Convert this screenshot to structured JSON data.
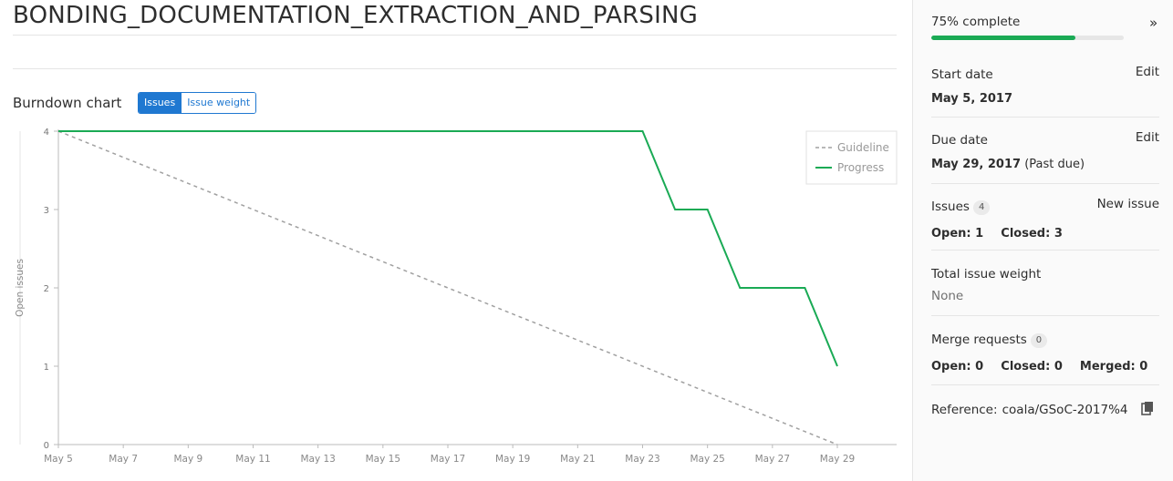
{
  "milestone": {
    "title": "BONDING_DOCUMENTATION_EXTRACTION_AND_PARSING"
  },
  "burndown": {
    "title": "Burndown chart",
    "toggle": {
      "issues_label": "Issues",
      "weight_label": "Issue weight",
      "active": "Issues"
    }
  },
  "chart_data": {
    "type": "line",
    "ylabel": "Open issues",
    "xlabel": "",
    "ylim": [
      0,
      4
    ],
    "xlim": [
      "May 5",
      "May 29"
    ],
    "y_ticks": [
      "0",
      "1",
      "2",
      "3",
      "4"
    ],
    "x_ticks": [
      "May 5",
      "May 7",
      "May 9",
      "May 11",
      "May 13",
      "May 15",
      "May 17",
      "May 19",
      "May 21",
      "May 23",
      "May 25",
      "May 27",
      "May 29"
    ],
    "legend_position": "top-right",
    "grid": false,
    "series": [
      {
        "name": "Guideline",
        "style": "dashed",
        "color": "#a0a0a0",
        "points": [
          {
            "x": "May 5",
            "y": 4
          },
          {
            "x": "May 29",
            "y": 0
          }
        ]
      },
      {
        "name": "Progress",
        "style": "solid",
        "color": "#1aaa55",
        "points": [
          {
            "x": "May 5",
            "y": 4
          },
          {
            "x": "May 23",
            "y": 4
          },
          {
            "x": "May 24",
            "y": 3
          },
          {
            "x": "May 25",
            "y": 3
          },
          {
            "x": "May 26",
            "y": 2
          },
          {
            "x": "May 28",
            "y": 2
          },
          {
            "x": "May 29",
            "y": 1
          }
        ]
      }
    ]
  },
  "sidebar": {
    "progress": {
      "label": "75% complete",
      "fraction": 0.75,
      "color": "#1aaa55"
    },
    "collapse_glyph": "»",
    "start_date": {
      "label": "Start date",
      "edit_label": "Edit",
      "value": "May 5, 2017"
    },
    "due_date": {
      "label": "Due date",
      "edit_label": "Edit",
      "value": "May 29, 2017",
      "note": "(Past due)"
    },
    "issues": {
      "label": "Issues",
      "count": "4",
      "new_label": "New issue",
      "open_label": "Open:",
      "open": "1",
      "closed_label": "Closed:",
      "closed": "3"
    },
    "weight": {
      "label": "Total issue weight",
      "value": "None"
    },
    "merge_requests": {
      "label": "Merge requests",
      "count": "0",
      "open_label": "Open:",
      "open": "0",
      "closed_label": "Closed:",
      "closed": "0",
      "merged_label": "Merged:",
      "merged": "0"
    },
    "reference": {
      "label": "Reference:",
      "value": "coala/GSoC-2017%4",
      "icon": "clipboard-icon"
    }
  },
  "colors": {
    "accent": "#1f78d1",
    "success": "#1aaa55",
    "guideline": "#a0a0a0"
  }
}
